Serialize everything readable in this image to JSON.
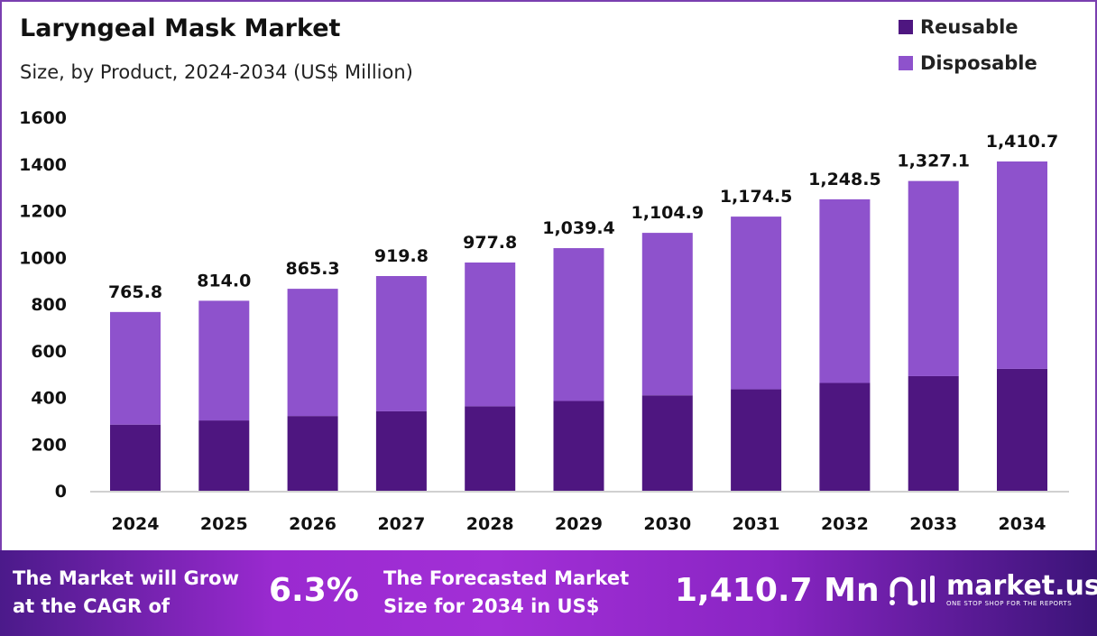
{
  "chart_data": {
    "type": "bar",
    "stacked": true,
    "title": "Laryngeal Mask Market",
    "subtitle": "Size, by Product, 2024-2034 (US$ Million)",
    "categories": [
      "2024",
      "2025",
      "2026",
      "2027",
      "2028",
      "2029",
      "2030",
      "2031",
      "2032",
      "2033",
      "2034"
    ],
    "series": [
      {
        "name": "Reusable",
        "color": "#4e1680",
        "values": [
          283.3,
          301.2,
          320.2,
          340.3,
          361.8,
          384.6,
          408.8,
          434.6,
          461.9,
          491.0,
          522.0
        ]
      },
      {
        "name": "Disposable",
        "color": "#8e52cc",
        "values": [
          482.5,
          512.8,
          545.1,
          579.5,
          616.0,
          654.8,
          696.1,
          739.9,
          786.6,
          836.1,
          888.7
        ]
      }
    ],
    "totals": [
      765.8,
      814.0,
      865.3,
      919.8,
      977.8,
      1039.4,
      1104.9,
      1174.5,
      1248.5,
      1327.1,
      1410.7
    ],
    "total_labels": [
      "765.8",
      "814.0",
      "865.3",
      "919.8",
      "977.8",
      "1,039.4",
      "1,104.9",
      "1,174.5",
      "1,248.5",
      "1,327.1",
      "1,410.7"
    ],
    "ylim": [
      0,
      1600
    ],
    "yticks": [
      "0",
      "200",
      "400",
      "600",
      "800",
      "1000",
      "1200",
      "1400",
      "1600"
    ],
    "grid": false,
    "legend": "top-right",
    "xlabel": "",
    "ylabel": ""
  },
  "footer": {
    "cagr_text_1": "The Market will Grow",
    "cagr_text_2": "at the CAGR of",
    "cagr_value": "6.3%",
    "forecast_text_1": "The Forecasted Market",
    "forecast_text_2": "Size for 2034 in US$",
    "forecast_value": "1,410.7 Mn",
    "brand": "market.us",
    "brand_tagline": "ONE STOP SHOP FOR THE REPORTS"
  }
}
